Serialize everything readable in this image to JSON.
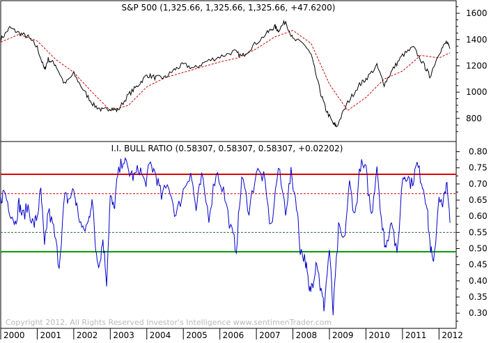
{
  "chart_data": [
    {
      "type": "line",
      "title": "S&P 500 (1,325.66, 1,325.66, 1,325.66, +47.6200)",
      "ylim": [
        640,
        1680
      ],
      "y_ticks": [
        800,
        1000,
        1200,
        1400,
        1600
      ],
      "grid": false,
      "series": [
        {
          "color": "#000000",
          "style": "solid",
          "x": [
            2000.0,
            2000.25,
            2000.5,
            2000.75,
            2001.0,
            2001.2,
            2001.3,
            2001.5,
            2001.75,
            2002.0,
            2002.3,
            2002.55,
            2002.8,
            2003.0,
            2003.2,
            2003.5,
            2003.75,
            2004.0,
            2004.25,
            2004.5,
            2004.75,
            2005.0,
            2005.3,
            2005.6,
            2006.0,
            2006.4,
            2006.6,
            2006.9,
            2007.3,
            2007.5,
            2007.6,
            2007.8,
            2008.0,
            2008.3,
            2008.5,
            2008.75,
            2008.9,
            2009.1,
            2009.2,
            2009.5,
            2009.8,
            2010.0,
            2010.3,
            2010.5,
            2010.75,
            2011.0,
            2011.3,
            2011.6,
            2011.75,
            2012.0,
            2012.2,
            2012.3
          ],
          "y": [
            1400,
            1490,
            1450,
            1420,
            1340,
            1170,
            1250,
            1210,
            1060,
            1140,
            1000,
            900,
            860,
            880,
            860,
            980,
            1050,
            1130,
            1110,
            1110,
            1170,
            1210,
            1180,
            1230,
            1270,
            1310,
            1270,
            1350,
            1450,
            1500,
            1470,
            1540,
            1400,
            1370,
            1280,
            1000,
            870,
            760,
            740,
            920,
            1050,
            1100,
            1200,
            1060,
            1180,
            1280,
            1340,
            1200,
            1120,
            1300,
            1380,
            1330
          ]
        },
        {
          "color": "#cc0000",
          "style": "dashed",
          "x": [
            2000.0,
            2000.5,
            2001.0,
            2001.5,
            2002.0,
            2002.5,
            2003.0,
            2003.5,
            2004.0,
            2004.5,
            2005.0,
            2005.5,
            2006.0,
            2006.5,
            2007.0,
            2007.5,
            2008.0,
            2008.5,
            2009.0,
            2009.5,
            2010.0,
            2010.5,
            2011.0,
            2011.5,
            2012.0,
            2012.3
          ],
          "y": [
            1380,
            1440,
            1390,
            1250,
            1150,
            1000,
            860,
            900,
            1040,
            1110,
            1150,
            1190,
            1230,
            1260,
            1330,
            1420,
            1470,
            1370,
            1060,
            860,
            960,
            1100,
            1160,
            1280,
            1260,
            1300
          ]
        }
      ]
    },
    {
      "type": "line",
      "title": "I.I. BULL RATIO (0.58307, 0.58307, 0.58307, +0.02202)",
      "ylim": [
        0.255,
        0.825
      ],
      "y_ticks": [
        "0.80",
        "0.75",
        "0.70",
        "0.65",
        "0.60",
        "0.55",
        "0.50",
        "0.45",
        "0.40",
        "0.35",
        "0.30"
      ],
      "grid": false,
      "reference_lines": [
        {
          "value": 0.73,
          "color": "#dd0000",
          "style": "solid"
        },
        {
          "value": 0.67,
          "color": "#cc0000",
          "style": "dashed"
        },
        {
          "value": 0.55,
          "color": "#336633",
          "style": "dashed"
        },
        {
          "value": 0.49,
          "color": "#009900",
          "style": "solid"
        }
      ],
      "series": [
        {
          "color": "#0000cc",
          "style": "solid",
          "x": [
            2000.0,
            2000.1,
            2000.25,
            2000.4,
            2000.5,
            2000.6,
            2000.75,
            2000.9,
            2001.0,
            2001.1,
            2001.2,
            2001.3,
            2001.45,
            2001.6,
            2001.75,
            2001.85,
            2002.0,
            2002.1,
            2002.25,
            2002.4,
            2002.5,
            2002.6,
            2002.7,
            2002.8,
            2002.9,
            2003.0,
            2003.1,
            2003.2,
            2003.35,
            2003.5,
            2003.65,
            2003.8,
            2003.95,
            2004.1,
            2004.25,
            2004.4,
            2004.6,
            2004.8,
            2005.0,
            2005.2,
            2005.35,
            2005.5,
            2005.7,
            2005.9,
            2006.1,
            2006.3,
            2006.45,
            2006.6,
            2006.8,
            2007.0,
            2007.2,
            2007.4,
            2007.6,
            2007.8,
            2007.95,
            2008.1,
            2008.2,
            2008.35,
            2008.45,
            2008.55,
            2008.65,
            2008.75,
            2008.85,
            2009.0,
            2009.1,
            2009.25,
            2009.4,
            2009.55,
            2009.7,
            2009.85,
            2010.0,
            2010.15,
            2010.3,
            2010.45,
            2010.55,
            2010.7,
            2010.85,
            2011.0,
            2011.1,
            2011.25,
            2011.4,
            2011.55,
            2011.65,
            2011.75,
            2011.85,
            2012.0,
            2012.1,
            2012.2,
            2012.3
          ],
          "y": [
            0.65,
            0.68,
            0.62,
            0.58,
            0.64,
            0.6,
            0.63,
            0.57,
            0.6,
            0.68,
            0.5,
            0.62,
            0.56,
            0.45,
            0.66,
            0.65,
            0.68,
            0.62,
            0.55,
            0.58,
            0.66,
            0.5,
            0.45,
            0.53,
            0.4,
            0.66,
            0.62,
            0.72,
            0.78,
            0.74,
            0.72,
            0.75,
            0.7,
            0.76,
            0.73,
            0.66,
            0.7,
            0.6,
            0.68,
            0.74,
            0.62,
            0.72,
            0.6,
            0.74,
            0.68,
            0.56,
            0.5,
            0.72,
            0.62,
            0.74,
            0.72,
            0.56,
            0.75,
            0.62,
            0.73,
            0.64,
            0.5,
            0.46,
            0.36,
            0.4,
            0.47,
            0.38,
            0.32,
            0.5,
            0.3,
            0.56,
            0.52,
            0.7,
            0.6,
            0.76,
            0.74,
            0.6,
            0.76,
            0.56,
            0.5,
            0.6,
            0.47,
            0.72,
            0.73,
            0.7,
            0.76,
            0.7,
            0.65,
            0.52,
            0.44,
            0.67,
            0.62,
            0.71,
            0.58
          ]
        }
      ]
    },
    {
      "type": "table",
      "x_ticks": [
        "2000",
        "2001",
        "2002",
        "2003",
        "2004",
        "2005",
        "2006",
        "2007",
        "2008",
        "2009",
        "2010",
        "2011",
        "2012"
      ],
      "xlim": [
        2000.0,
        2012.47
      ]
    }
  ],
  "copyright": "Copyright 2012, All Rights Reserved  Investor's Intelligence  www.sentimenTrader.com"
}
